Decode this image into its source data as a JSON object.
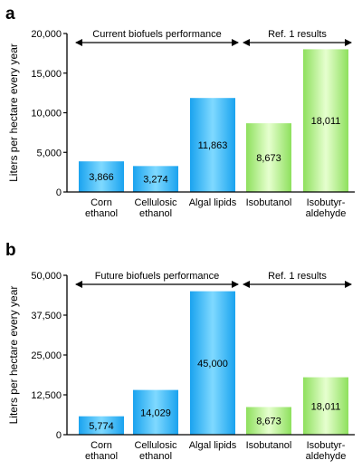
{
  "colors": {
    "blue_center": "#7fd9ff",
    "blue_edge": "#1aa3ef",
    "green_center": "#e6ffcf",
    "green_edge": "#8ee05d",
    "axis": "#000000"
  },
  "chart_data": [
    {
      "type": "bar",
      "panel_label": "a",
      "ylabel": "Liters per hectare every year",
      "ylim": [
        0,
        20000
      ],
      "yticks": [
        "0",
        "5,000",
        "10,000",
        "15,000",
        "20,000"
      ],
      "yticks_values": [
        0,
        5000,
        10000,
        15000,
        20000
      ],
      "categories": [
        [
          "Corn",
          "ethanol"
        ],
        [
          "Cellulosic",
          "ethanol"
        ],
        [
          "Algal lipids"
        ],
        [
          "Isobutanol"
        ],
        [
          "Isobutyr-",
          "aldehyde"
        ]
      ],
      "values": [
        3866,
        3274,
        11863,
        8673,
        18011
      ],
      "value_labels": [
        "3,866",
        "3,274",
        "11,863",
        "8,673",
        "18,011"
      ],
      "bar_colors": [
        "blue",
        "blue",
        "blue",
        "green",
        "green"
      ],
      "brackets": [
        {
          "label": "Current biofuels performance",
          "from": 0,
          "to": 2
        },
        {
          "label": "Ref. 1 results",
          "from": 3,
          "to": 4
        }
      ]
    },
    {
      "type": "bar",
      "panel_label": "b",
      "ylabel": "Liters per hectare every year",
      "ylim": [
        0,
        50000
      ],
      "yticks": [
        "0",
        "12,500",
        "25,000",
        "37,500",
        "50,000"
      ],
      "yticks_values": [
        0,
        12500,
        25000,
        37500,
        50000
      ],
      "categories": [
        [
          "Corn",
          "ethanol"
        ],
        [
          "Cellulosic",
          "ethanol"
        ],
        [
          "Algal lipids"
        ],
        [
          "Isobutanol"
        ],
        [
          "Isobutyr-",
          "aldehyde"
        ]
      ],
      "values": [
        5774,
        14029,
        45000,
        8673,
        18011
      ],
      "value_labels": [
        "5,774",
        "14,029",
        "45,000",
        "8,673",
        "18,011"
      ],
      "bar_colors": [
        "blue",
        "blue",
        "blue",
        "green",
        "green"
      ],
      "brackets": [
        {
          "label": "Future biofuels performance",
          "from": 0,
          "to": 2
        },
        {
          "label": "Ref. 1 results",
          "from": 3,
          "to": 4
        }
      ]
    }
  ]
}
